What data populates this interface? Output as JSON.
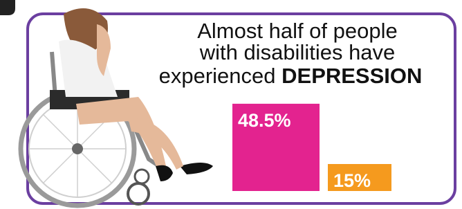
{
  "chart_data": {
    "type": "bar",
    "title": [
      "Almost half of people",
      "with disabilities have",
      "experienced"
    ],
    "title_emphasis": "DEPRESSION",
    "categories": [
      null,
      null
    ],
    "values": [
      48.5,
      15
    ],
    "value_labels": [
      "48.5%",
      "15%"
    ],
    "colors": [
      "#e3238f",
      "#f59a1e"
    ]
  }
}
